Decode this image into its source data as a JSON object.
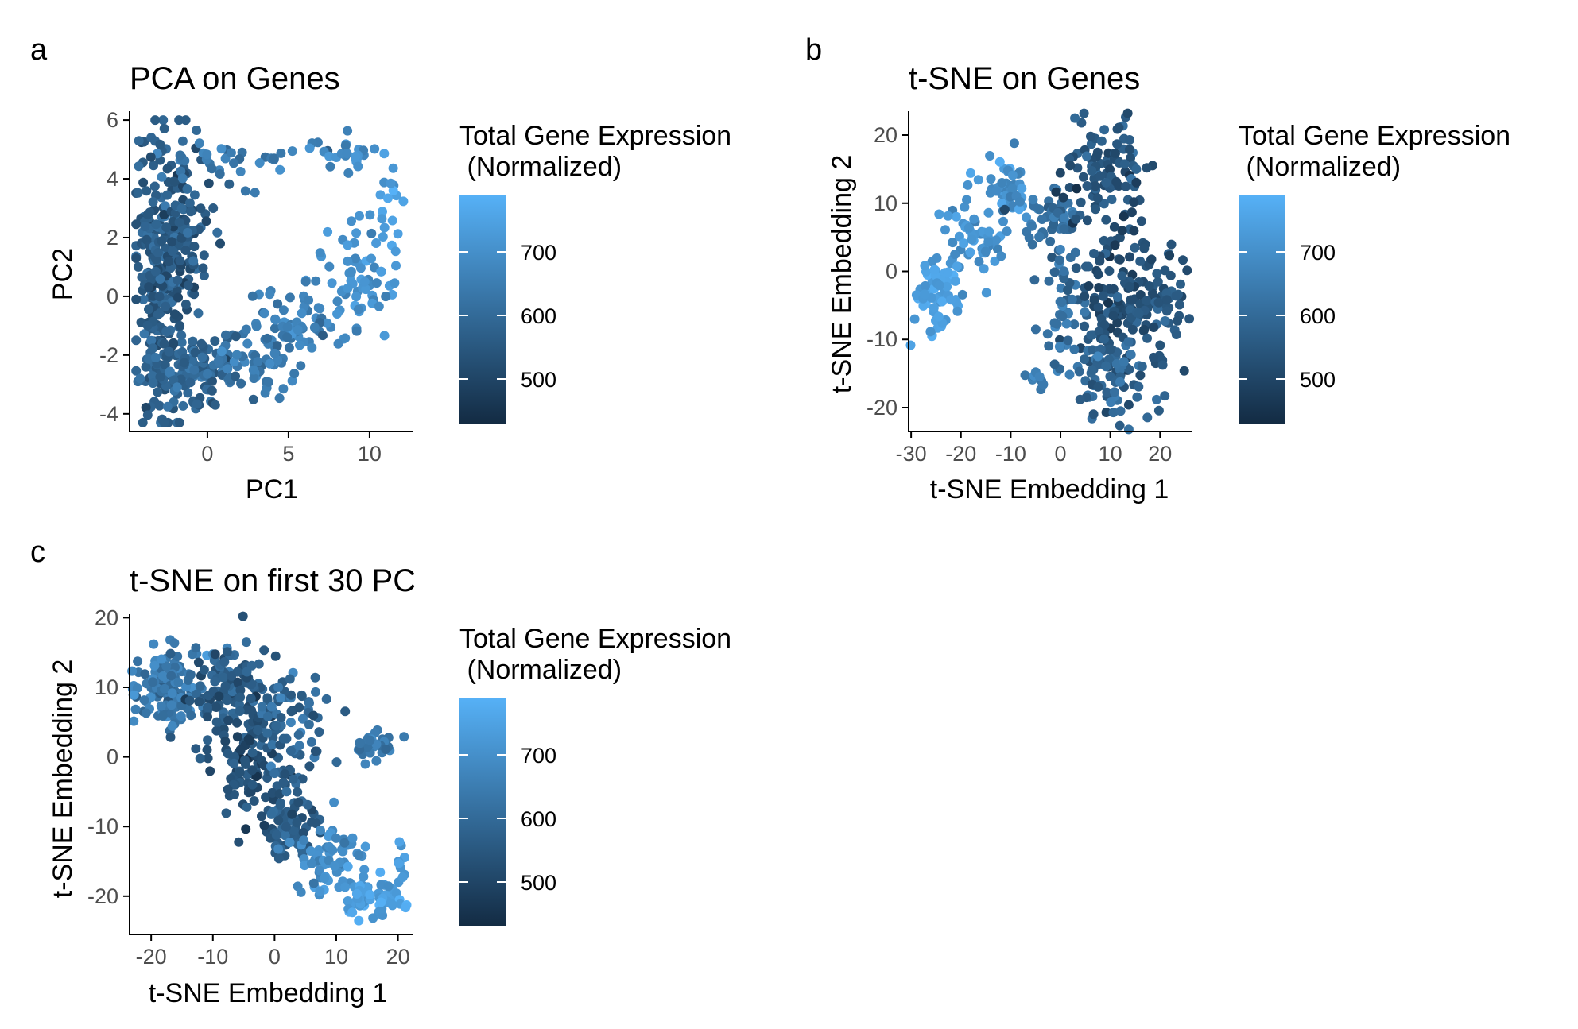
{
  "colors": {
    "low": "#132b43",
    "high": "#56b1f7",
    "axis": "#000000",
    "tick_text": "#4d4d4d"
  },
  "chart_data": [
    {
      "panel": "a",
      "type": "scatter",
      "title": "PCA on Genes",
      "xlabel": "PC1",
      "ylabel": "PC2",
      "xlim": [
        -4.8,
        12.7
      ],
      "ylim": [
        -4.6,
        6.3
      ],
      "xticks": [
        0,
        5,
        10
      ],
      "yticks": [
        -4,
        -2,
        0,
        2,
        4,
        6
      ],
      "grid": false,
      "legend": {
        "title_line1": "Total Gene Expression",
        "title_line2": " (Normalized)",
        "ticks": [
          500,
          600,
          700
        ],
        "range": [
          430,
          790
        ],
        "placement": "right"
      },
      "seed": 11,
      "clusters": [
        {
          "n": 230,
          "cx": -3.0,
          "cy": 0.5,
          "sx": 0.7,
          "sy": 2.1,
          "v": 560,
          "vs": 35
        },
        {
          "n": 110,
          "cx": -1.5,
          "cy": 2.4,
          "sx": 0.9,
          "sy": 1.3,
          "v": 560,
          "vs": 35
        },
        {
          "n": 120,
          "cx": -0.8,
          "cy": -2.6,
          "sx": 1.5,
          "sy": 0.8,
          "v": 590,
          "vs": 30
        },
        {
          "n": 40,
          "cx": 1.8,
          "cy": 4.6,
          "sx": 2.5,
          "sy": 0.4,
          "v": 640,
          "vs": 35
        },
        {
          "n": 25,
          "cx": 8.5,
          "cy": 4.9,
          "sx": 1.2,
          "sy": 0.35,
          "v": 700,
          "vs": 30
        },
        {
          "n": 20,
          "cx": 11.3,
          "cy": 2.6,
          "sx": 0.6,
          "sy": 1.0,
          "v": 730,
          "vs": 25
        },
        {
          "n": 60,
          "cx": 9.0,
          "cy": 0.6,
          "sx": 1.2,
          "sy": 0.9,
          "v": 710,
          "vs": 25
        },
        {
          "n": 70,
          "cx": 5.8,
          "cy": -1.0,
          "sx": 1.4,
          "sy": 0.7,
          "v": 660,
          "vs": 30
        },
        {
          "n": 50,
          "cx": 3.0,
          "cy": -2.3,
          "sx": 1.1,
          "sy": 0.6,
          "v": 640,
          "vs": 30
        }
      ]
    },
    {
      "panel": "b",
      "type": "scatter",
      "title": "t-SNE on Genes",
      "xlabel": "t-SNE Embedding 1",
      "ylabel": "t-SNE Embedding 2",
      "xlim": [
        -30.5,
        26.5
      ],
      "ylim": [
        -23.5,
        23.5
      ],
      "xticks": [
        -30,
        -20,
        -10,
        0,
        10,
        20
      ],
      "yticks": [
        -20,
        -10,
        0,
        10,
        20
      ],
      "grid": false,
      "legend": {
        "title_line1": "Total Gene Expression",
        "title_line2": " (Normalized)",
        "ticks": [
          500,
          600,
          700
        ],
        "range": [
          430,
          790
        ],
        "placement": "right"
      },
      "seed": 23,
      "clusters": [
        {
          "n": 60,
          "cx": -25.0,
          "cy": -3.0,
          "sx": 2.0,
          "sy": 3.5,
          "v": 740,
          "vs": 25
        },
        {
          "n": 60,
          "cx": -18.0,
          "cy": 5.5,
          "sx": 3.0,
          "sy": 3.5,
          "v": 700,
          "vs": 30
        },
        {
          "n": 40,
          "cx": -10.0,
          "cy": 12.0,
          "sx": 2.0,
          "sy": 2.0,
          "v": 700,
          "vs": 30
        },
        {
          "n": 40,
          "cx": -2.0,
          "cy": 7.5,
          "sx": 4.0,
          "sy": 2.0,
          "v": 610,
          "vs": 35
        },
        {
          "n": 100,
          "cx": 9.0,
          "cy": 14.0,
          "sx": 4.0,
          "sy": 3.5,
          "v": 540,
          "vs": 35
        },
        {
          "n": 150,
          "cx": 12.0,
          "cy": -4.0,
          "sx": 4.5,
          "sy": 5.5,
          "v": 530,
          "vs": 35
        },
        {
          "n": 80,
          "cx": 9.0,
          "cy": -15.0,
          "sx": 4.0,
          "sy": 3.5,
          "v": 590,
          "vs": 35
        },
        {
          "n": 50,
          "cx": 0.0,
          "cy": -5.0,
          "sx": 2.0,
          "sy": 6.0,
          "v": 620,
          "vs": 30
        },
        {
          "n": 40,
          "cx": 20.0,
          "cy": -5.0,
          "sx": 2.5,
          "sy": 3.5,
          "v": 560,
          "vs": 30
        },
        {
          "n": 10,
          "cx": -4.5,
          "cy": -15.5,
          "sx": 1.5,
          "sy": 0.5,
          "v": 660,
          "vs": 25
        }
      ]
    },
    {
      "panel": "c",
      "type": "scatter",
      "title": "t-SNE on first 30 PC",
      "xlabel": "t-SNE Embedding 1",
      "ylabel": "t-SNE Embedding 2",
      "xlim": [
        -23.5,
        22.5
      ],
      "ylim": [
        -25.5,
        20.5
      ],
      "xticks": [
        -20,
        -10,
        0,
        10,
        20
      ],
      "yticks": [
        -20,
        -10,
        0,
        10,
        20
      ],
      "grid": false,
      "legend": {
        "title_line1": "Total Gene Expression",
        "title_line2": " (Normalized)",
        "ticks": [
          500,
          600,
          700
        ],
        "range": [
          430,
          790
        ],
        "placement": "right"
      },
      "seed": 37,
      "clusters": [
        {
          "n": 120,
          "cx": -17.0,
          "cy": 10.0,
          "sx": 3.0,
          "sy": 3.0,
          "v": 640,
          "vs": 35
        },
        {
          "n": 140,
          "cx": -7.0,
          "cy": 9.0,
          "sx": 3.5,
          "sy": 4.0,
          "v": 560,
          "vs": 35
        },
        {
          "n": 80,
          "cx": -4.0,
          "cy": -1.0,
          "sx": 3.0,
          "sy": 3.0,
          "v": 530,
          "vs": 30
        },
        {
          "n": 60,
          "cx": 3.0,
          "cy": 5.0,
          "sx": 3.5,
          "sy": 3.5,
          "v": 600,
          "vs": 35
        },
        {
          "n": 30,
          "cx": 16.0,
          "cy": 2.0,
          "sx": 2.0,
          "sy": 1.5,
          "v": 640,
          "vs": 30
        },
        {
          "n": 80,
          "cx": 2.0,
          "cy": -9.0,
          "sx": 3.0,
          "sy": 3.0,
          "v": 560,
          "vs": 30
        },
        {
          "n": 70,
          "cx": 9.0,
          "cy": -15.0,
          "sx": 2.5,
          "sy": 2.5,
          "v": 690,
          "vs": 30
        },
        {
          "n": 60,
          "cx": 15.5,
          "cy": -20.5,
          "sx": 2.5,
          "sy": 1.5,
          "v": 745,
          "vs": 25
        },
        {
          "n": 10,
          "cx": 20.5,
          "cy": -16.0,
          "sx": 0.5,
          "sy": 2.0,
          "v": 730,
          "vs": 20
        }
      ]
    }
  ]
}
